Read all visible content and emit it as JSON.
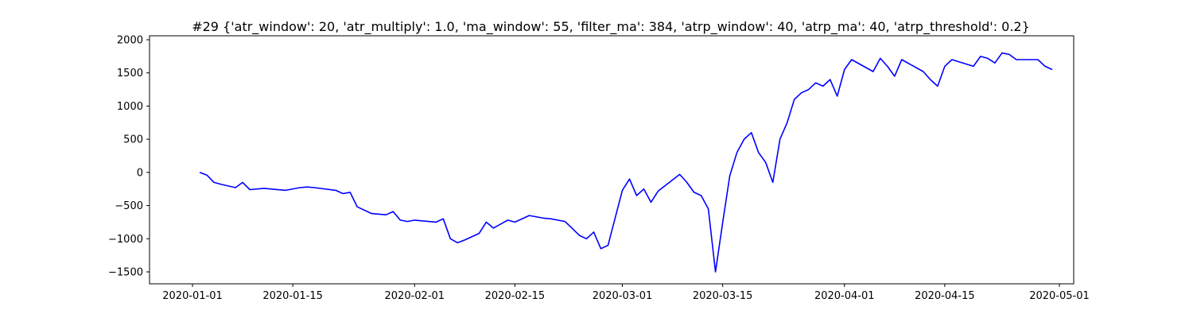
{
  "chart_data": {
    "type": "line",
    "title": "#29 {'atr_window': 20, 'atr_multiply': 1.0, 'ma_window': 55, 'filter_ma': 384, 'atrp_window': 40, 'atrp_ma': 40, 'atrp_threshold': 0.2}",
    "xlabel": "",
    "ylabel": "",
    "grid": false,
    "line_color": "#0000ff",
    "xlim": [
      "2019-12-26",
      "2020-05-03"
    ],
    "ylim": [
      -1680,
      2060
    ],
    "x_ticks": [
      "2020-01-01",
      "2020-01-15",
      "2020-02-01",
      "2020-02-15",
      "2020-03-01",
      "2020-03-15",
      "2020-04-01",
      "2020-04-15",
      "2020-05-01"
    ],
    "y_ticks": [
      -1500,
      -1000,
      -500,
      0,
      500,
      1000,
      1500,
      2000
    ],
    "y_tick_labels": [
      "−1500",
      "−1000",
      "−500",
      "0",
      "500",
      "1000",
      "1500",
      "2000"
    ],
    "series": [
      {
        "x": [
          "2020-01-02",
          "2020-01-03",
          "2020-01-04",
          "2020-01-05",
          "2020-01-07",
          "2020-01-08",
          "2020-01-09",
          "2020-01-11",
          "2020-01-14",
          "2020-01-16",
          "2020-01-17",
          "2020-01-18",
          "2020-01-21",
          "2020-01-22",
          "2020-01-23",
          "2020-01-24",
          "2020-01-26",
          "2020-01-28",
          "2020-01-29",
          "2020-01-30",
          "2020-01-31",
          "2020-02-01",
          "2020-02-04",
          "2020-02-05",
          "2020-02-06",
          "2020-02-07",
          "2020-02-08",
          "2020-02-10",
          "2020-02-11",
          "2020-02-12",
          "2020-02-14",
          "2020-02-15",
          "2020-02-17",
          "2020-02-19",
          "2020-02-20",
          "2020-02-22",
          "2020-02-24",
          "2020-02-25",
          "2020-02-26",
          "2020-02-27",
          "2020-02-28",
          "2020-03-01",
          "2020-03-02",
          "2020-03-03",
          "2020-03-04",
          "2020-03-05",
          "2020-03-06",
          "2020-03-09",
          "2020-03-10",
          "2020-03-11",
          "2020-03-12",
          "2020-03-13",
          "2020-03-14",
          "2020-03-15",
          "2020-03-16",
          "2020-03-17",
          "2020-03-18",
          "2020-03-19",
          "2020-03-20",
          "2020-03-21",
          "2020-03-22",
          "2020-03-23",
          "2020-03-24",
          "2020-03-25",
          "2020-03-26",
          "2020-03-27",
          "2020-03-28",
          "2020-03-29",
          "2020-03-30",
          "2020-03-31",
          "2020-04-01",
          "2020-04-02",
          "2020-04-05",
          "2020-04-06",
          "2020-04-07",
          "2020-04-08",
          "2020-04-09",
          "2020-04-12",
          "2020-04-13",
          "2020-04-14",
          "2020-04-15",
          "2020-04-16",
          "2020-04-19",
          "2020-04-20",
          "2020-04-21",
          "2020-04-22",
          "2020-04-23",
          "2020-04-24",
          "2020-04-25",
          "2020-04-28",
          "2020-04-29",
          "2020-04-30"
        ],
        "y": [
          0,
          -40,
          -150,
          -180,
          -230,
          -150,
          -260,
          -240,
          -270,
          -230,
          -220,
          -230,
          -270,
          -320,
          -300,
          -520,
          -620,
          -640,
          -590,
          -720,
          -740,
          -720,
          -750,
          -700,
          -1000,
          -1060,
          -1020,
          -920,
          -750,
          -840,
          -720,
          -750,
          -650,
          -690,
          -700,
          -740,
          -950,
          -1000,
          -900,
          -1150,
          -1100,
          -270,
          -100,
          -350,
          -250,
          -450,
          -280,
          -30,
          -150,
          -300,
          -350,
          -550,
          -1500,
          -760,
          -50,
          300,
          500,
          600,
          300,
          150,
          -150,
          500,
          750,
          1100,
          1200,
          1250,
          1350,
          1300,
          1400,
          1150,
          1550,
          1700,
          1520,
          1720,
          1600,
          1450,
          1700,
          1520,
          1400,
          1300,
          1600,
          1700,
          1600,
          1750,
          1720,
          1650,
          1800,
          1780,
          1700,
          1700,
          1600,
          1550
        ]
      }
    ]
  }
}
